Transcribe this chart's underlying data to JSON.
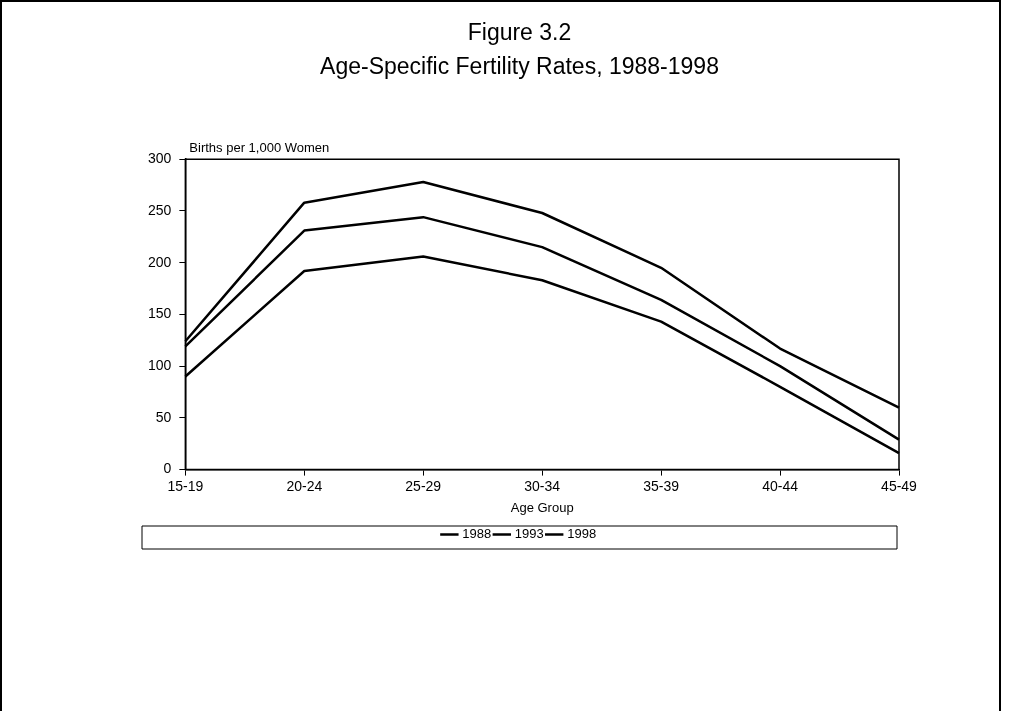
{
  "chart_data": {
    "type": "line",
    "title": "Figure 3.2",
    "subtitle": "Age-Specific Fertility Rates, 1988-1998",
    "xlabel": "Age Group",
    "ylabel": "Births per 1,000 Women",
    "categories": [
      "15-19",
      "20-24",
      "25-29",
      "30-34",
      "35-39",
      "40-44",
      "45-49"
    ],
    "series": [
      {
        "name": "1988",
        "color": "#000000",
        "values": [
          124,
          258,
          278,
          248,
          195,
          117,
          60
        ]
      },
      {
        "name": "1993",
        "color": "#000000",
        "values": [
          119,
          231,
          244,
          215,
          164,
          100,
          29
        ]
      },
      {
        "name": "1998",
        "color": "#000000",
        "values": [
          90,
          192,
          206,
          183,
          143,
          80,
          16
        ]
      }
    ],
    "ylim": [
      0,
      300
    ],
    "yticks": [
      0,
      50,
      100,
      150,
      200,
      250,
      300
    ],
    "legend": "bottom",
    "marker": "none",
    "line_style": "solid"
  }
}
